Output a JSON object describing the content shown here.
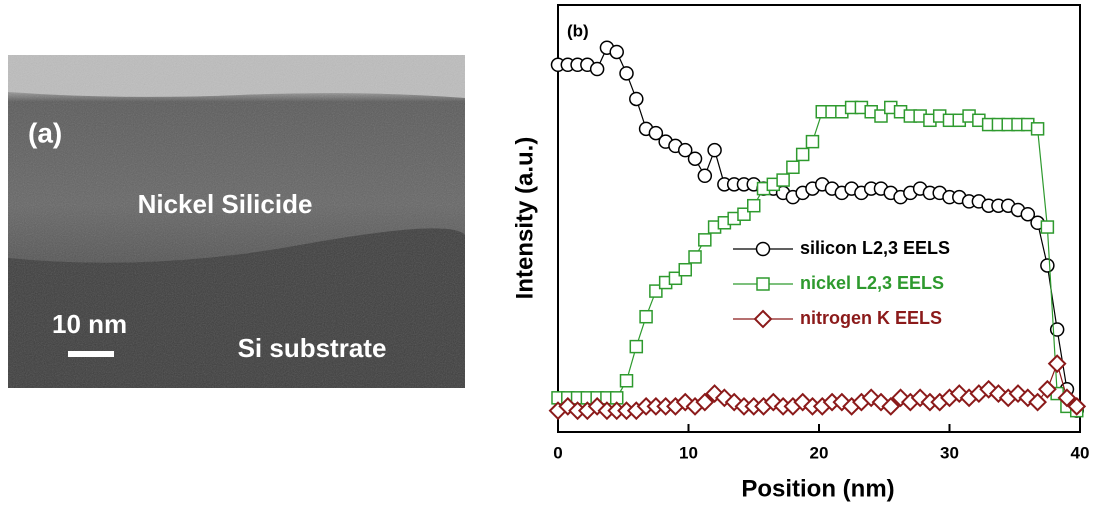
{
  "image": {
    "panel_label": "(a)",
    "layer_label": "Nickel Silicide",
    "scale_bar_label": "10 nm",
    "substrate_label": "Si substrate"
  },
  "chart_data": {
    "type": "line",
    "panel_label": "(b)",
    "x_label": "Position (nm)",
    "y_label": "Intensity (a.u.)",
    "x": [
      0,
      0.75,
      1.5,
      2.25,
      3,
      3.75,
      4.5,
      5.25,
      6,
      6.75,
      7.5,
      8.25,
      9,
      9.75,
      10.5,
      11.25,
      12,
      12.75,
      13.5,
      14.25,
      15,
      15.75,
      16.5,
      17.25,
      18,
      18.75,
      19.5,
      20.25,
      21,
      21.75,
      22.5,
      23.25,
      24,
      24.75,
      25.5,
      26.25,
      27,
      27.75,
      28.5,
      29.25,
      30,
      30.75,
      31.5,
      32.25,
      33,
      33.75,
      34.5,
      35.25,
      36,
      36.75,
      37.5,
      38.25,
      39,
      39.75
    ],
    "series": [
      {
        "name": "silicon L2,3 EELS",
        "color": "#000000",
        "marker": "circle",
        "values": [
          86,
          86,
          86,
          86,
          85,
          90,
          89,
          84,
          78,
          71,
          70,
          68,
          67,
          66,
          64,
          60,
          66,
          58,
          58,
          58,
          58,
          57,
          57,
          56,
          55,
          56,
          57,
          58,
          57,
          56,
          57,
          56,
          57,
          57,
          56,
          55,
          56,
          57,
          56,
          56,
          55,
          55,
          54,
          54,
          53,
          53,
          53,
          52,
          51,
          49,
          39,
          24,
          10,
          5
        ]
      },
      {
        "name": "nickel L2,3 EELS",
        "color": "#2e9a2e",
        "marker": "square",
        "values": [
          8,
          8,
          8,
          8,
          8,
          8,
          8,
          12,
          20,
          27,
          33,
          35,
          36,
          38,
          41,
          45,
          48,
          49,
          50,
          51,
          53,
          57,
          58,
          59,
          62,
          65,
          68,
          75,
          75,
          75,
          76,
          76,
          75,
          74,
          76,
          75,
          74,
          74,
          73,
          74,
          73,
          73,
          74,
          73,
          72,
          72,
          72,
          72,
          72,
          71,
          48,
          9,
          6,
          5
        ]
      },
      {
        "name": "nitrogen K EELS",
        "color": "#8b1a1a",
        "marker": "diamond",
        "values": [
          5,
          6,
          5,
          5,
          6,
          5,
          5,
          5,
          5,
          6,
          6,
          6,
          6,
          7,
          6,
          7,
          9,
          8,
          7,
          6,
          6,
          6,
          7,
          6,
          6,
          7,
          6,
          6,
          7,
          7,
          6,
          7,
          8,
          7,
          6,
          8,
          7,
          8,
          7,
          7,
          8,
          9,
          8,
          9,
          10,
          9,
          8,
          9,
          8,
          7,
          10,
          16,
          8,
          6
        ]
      }
    ],
    "xlim": [
      0,
      40
    ],
    "xticks": [
      0,
      10,
      20,
      30,
      40
    ],
    "ylim": [
      0,
      100
    ]
  }
}
